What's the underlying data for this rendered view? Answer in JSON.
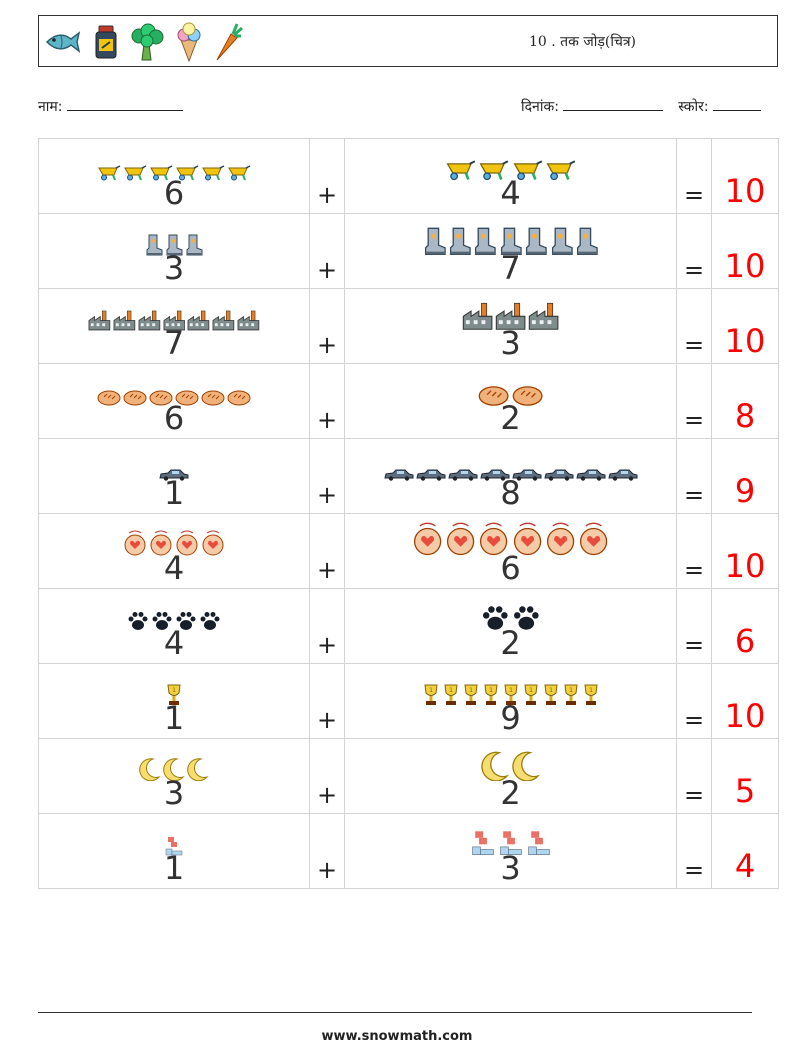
{
  "header": {
    "icons": [
      "fish-icon",
      "medicine-jar-icon",
      "broccoli-icon",
      "ice-cream-icon",
      "carrot-icon"
    ],
    "title": "10 . तक जोड़(चित्र)"
  },
  "meta": {
    "name_label": "नाम:",
    "date_label": "दिनांक:",
    "score_label": "स्कोर:"
  },
  "rows": [
    {
      "icon": "wheelbarrow-icon",
      "a": "6",
      "op": "+",
      "b": "4",
      "eq": "=",
      "result": "10"
    },
    {
      "icon": "boot-icon",
      "a": "3",
      "op": "+",
      "b": "7",
      "eq": "=",
      "result": "10"
    },
    {
      "icon": "factory-icon",
      "a": "7",
      "op": "+",
      "b": "3",
      "eq": "=",
      "result": "10"
    },
    {
      "icon": "bread-icon",
      "a": "6",
      "op": "+",
      "b": "2",
      "eq": "=",
      "result": "8"
    },
    {
      "icon": "car-icon",
      "a": "1",
      "op": "+",
      "b": "8",
      "eq": "=",
      "result": "9"
    },
    {
      "icon": "heart-badge-icon",
      "a": "4",
      "op": "+",
      "b": "6",
      "eq": "=",
      "result": "10"
    },
    {
      "icon": "paw-icon",
      "a": "4",
      "op": "+",
      "b": "2",
      "eq": "=",
      "result": "6"
    },
    {
      "icon": "trophy-icon",
      "a": "1",
      "op": "+",
      "b": "9",
      "eq": "=",
      "result": "10"
    },
    {
      "icon": "crescent-moon-icon",
      "a": "3",
      "op": "+",
      "b": "2",
      "eq": "=",
      "result": "5"
    },
    {
      "icon": "tetromino-icon",
      "a": "1",
      "op": "+",
      "b": "3",
      "eq": "=",
      "result": "4"
    }
  ],
  "footer": {
    "url": "www.snowmath.com"
  }
}
